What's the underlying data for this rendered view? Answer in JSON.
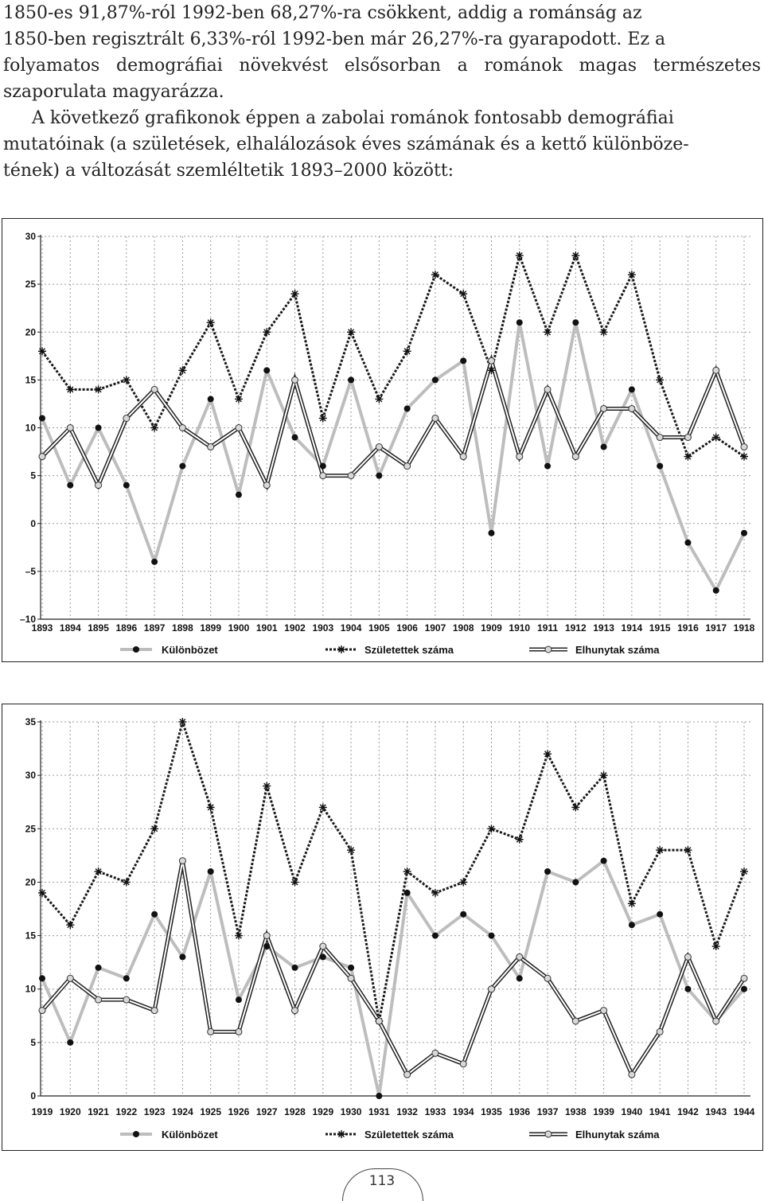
{
  "text": {
    "lines": [
      "1850-es 91,87%-ról 1992-ben 68,27%-ra csökkent, addig a románság az",
      "1850-ben regisztrált 6,33%-ról 1992-ben már 26,27%-ra gyarapodott. Ez a",
      "folyamatos demográfiai növekvést elsősorban a románok magas természetes",
      "szaporulata magyarázza.",
      "A következő grafikonok éppen a zabolai románok fontosabb demográfiai",
      "mutatóinak (a születések, elhalálozások éves számának és a kettő különböze-",
      "tének) a változását szemléltetik 1893–2000 között:"
    ]
  },
  "page_number": "113",
  "colors": {
    "difference": "#bdbdbd",
    "births": "#1a1a1a",
    "deaths": "#222222",
    "grid": "#9a9a9a"
  },
  "chart_data": [
    {
      "type": "line",
      "x": [
        "1893",
        "1894",
        "1895",
        "1896",
        "1897",
        "1898",
        "1899",
        "1900",
        "1901",
        "1902",
        "1903",
        "1904",
        "1905",
        "1906",
        "1907",
        "1908",
        "1909",
        "1910",
        "1911",
        "1912",
        "1913",
        "1914",
        "1915",
        "1916",
        "1917",
        "1918"
      ],
      "ylim": [
        -10,
        30
      ],
      "yticks": [
        "30",
        "25",
        "20",
        "15",
        "10",
        "5",
        "0",
        "–5",
        "–10"
      ],
      "grid": true,
      "legend_position": "bottom",
      "series": [
        {
          "name": "Különbözet",
          "values": [
            11,
            4,
            10,
            4,
            -4,
            6,
            13,
            3,
            16,
            9,
            6,
            15,
            5,
            12,
            15,
            17,
            -1,
            21,
            6,
            21,
            8,
            14,
            6,
            -2,
            -7,
            -1
          ]
        },
        {
          "name": "Születettek száma",
          "values": [
            18,
            14,
            14,
            15,
            10,
            16,
            21,
            13,
            20,
            24,
            11,
            20,
            13,
            18,
            26,
            24,
            16,
            28,
            20,
            28,
            20,
            26,
            15,
            7,
            9,
            7
          ]
        },
        {
          "name": "Elhunytak száma",
          "values": [
            7,
            10,
            4,
            11,
            14,
            10,
            8,
            10,
            4,
            15,
            5,
            5,
            8,
            6,
            11,
            7,
            17,
            7,
            14,
            7,
            12,
            12,
            9,
            9,
            16,
            8
          ]
        }
      ]
    },
    {
      "type": "line",
      "x": [
        "1919",
        "1920",
        "1921",
        "1922",
        "1923",
        "1924",
        "1925",
        "1926",
        "1927",
        "1928",
        "1929",
        "1930",
        "1931",
        "1932",
        "1933",
        "1934",
        "1935",
        "1936",
        "1937",
        "1938",
        "1939",
        "1940",
        "1941",
        "1942",
        "1943",
        "1944"
      ],
      "ylim": [
        0,
        35
      ],
      "yticks": [
        "35",
        "30",
        "25",
        "20",
        "15",
        "10",
        "5",
        "0"
      ],
      "grid": true,
      "legend_position": "bottom",
      "series": [
        {
          "name": "Különbözet",
          "values": [
            11,
            5,
            12,
            11,
            17,
            13,
            21,
            9,
            14,
            12,
            13,
            12,
            0,
            19,
            15,
            17,
            15,
            11,
            21,
            20,
            22,
            16,
            17,
            10,
            7,
            10
          ]
        },
        {
          "name": "Születettek száma",
          "values": [
            19,
            16,
            21,
            20,
            25,
            35,
            27,
            15,
            29,
            20,
            27,
            23,
            7,
            21,
            19,
            20,
            25,
            24,
            32,
            27,
            30,
            18,
            23,
            23,
            14,
            21
          ]
        },
        {
          "name": "Elhunytak száma",
          "values": [
            8,
            11,
            9,
            9,
            8,
            22,
            6,
            6,
            15,
            8,
            14,
            11,
            7,
            2,
            4,
            3,
            10,
            13,
            11,
            7,
            8,
            2,
            6,
            13,
            7,
            11
          ]
        }
      ]
    }
  ]
}
